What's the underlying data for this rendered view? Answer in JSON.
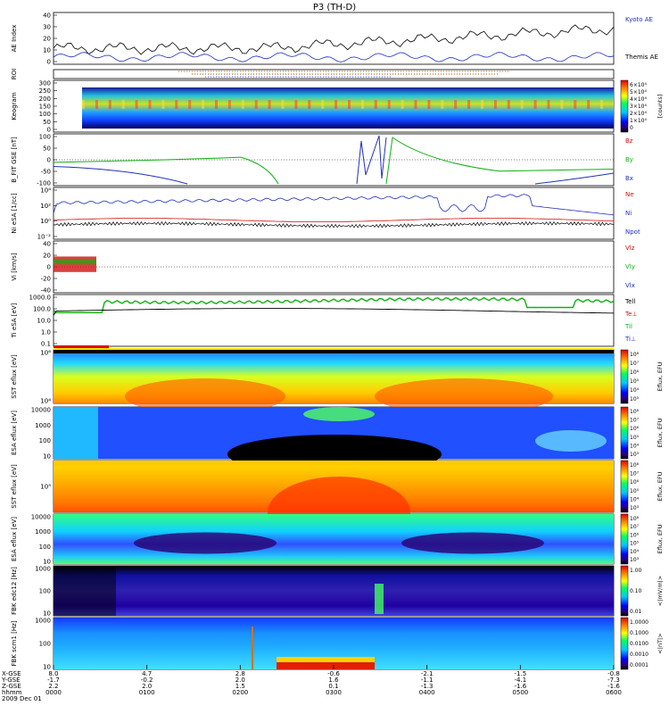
{
  "chart_data": {
    "type": "heatmap",
    "title": "P3 (TH-D)",
    "date_label": "2009 Dec 01",
    "time_ticks": [
      "0000",
      "0100",
      "0200",
      "0300",
      "0400",
      "0500",
      "0600"
    ],
    "ephemeris": {
      "labels": [
        "X-GSE",
        "Y-GSE",
        "Z-GSE",
        "hhmm"
      ],
      "x_gse": [
        "8.0",
        "4.7",
        "2.8",
        "-0.6",
        "-2.1",
        "-1.5",
        "-0.8"
      ],
      "y_gse": [
        "-1.7",
        "-0.2",
        "2.0",
        "1.6",
        "-1.1",
        "-4.1",
        "-7.3"
      ],
      "z_gse": [
        "2.2",
        "2.0",
        "1.5",
        "0.1",
        "-1.3",
        "-1.6",
        "-1.6"
      ]
    },
    "panels": [
      {
        "ylabel": "AE Index",
        "ticks": [
          "40",
          "30",
          "20",
          "10",
          "0"
        ],
        "legend": [
          {
            "name": "Kyoto AE",
            "color": "#1f2fbf"
          },
          {
            "name": "Themis AE",
            "color": "#000000"
          }
        ]
      },
      {
        "ylabel": "ROI",
        "ticks": [],
        "legend": []
      },
      {
        "ylabel": "Keogram",
        "ticks": [
          "300",
          "250",
          "200",
          "150",
          "100",
          "50",
          "0"
        ],
        "legend": [],
        "colorbar": {
          "ticks": [
            "6×10⁴",
            "5×10⁴",
            "4×10⁴",
            "3×10⁴",
            "2×10⁴",
            "1×10⁴",
            "0"
          ],
          "unit": "[counts]"
        }
      },
      {
        "ylabel": "B_FIT GSE [nT]",
        "ticks": [
          "100",
          "50",
          "0",
          "-50",
          "-100"
        ],
        "legend": [
          {
            "name": "Bz",
            "color": "#d01010"
          },
          {
            "name": "By",
            "color": "#10b010"
          },
          {
            "name": "Bx",
            "color": "#1f2fbf"
          }
        ]
      },
      {
        "ylabel": "Ni eSA [1/cc]",
        "ticks": [
          "10⁴",
          "10²",
          "10⁰",
          "10⁻²"
        ],
        "legend": [
          {
            "name": "Ne",
            "color": "#d01010"
          },
          {
            "name": "Ni",
            "color": "#1f2fbf"
          },
          {
            "name": "Npot",
            "color": "#1f2fbf"
          }
        ]
      },
      {
        "ylabel": "Vi [km/s]",
        "ticks": [
          "40",
          "20",
          "0",
          "-20",
          "-40"
        ],
        "legend": [
          {
            "name": "Vlz",
            "color": "#d01010"
          },
          {
            "name": "Vly",
            "color": "#10b010"
          },
          {
            "name": "Vlx",
            "color": "#1f2fbf"
          }
        ]
      },
      {
        "ylabel": "Ti eSA [eV]",
        "ticks": [
          "1000.0",
          "100.0",
          "10.0",
          "1.0",
          "0.1"
        ],
        "legend": [
          {
            "name": "Tell",
            "color": "#000000"
          },
          {
            "name": "Te⊥",
            "color": "#d01010"
          },
          {
            "name": "Til",
            "color": "#10b010"
          },
          {
            "name": "Ti⊥",
            "color": "#1f2fbf"
          }
        ]
      },
      {
        "ylabel": "SST eflux [eV]",
        "ticks": [
          "10⁶",
          "10⁴"
        ],
        "legend": [],
        "colorbar": {
          "ticks": [
            "10⁸",
            "10⁷",
            "10⁶",
            "10⁵",
            "10⁴",
            "10³"
          ],
          "unit": "Eflux, EFU"
        }
      },
      {
        "ylabel": "ESA eflux [eV]",
        "ticks": [
          "10000",
          "1000",
          "100",
          "10"
        ],
        "legend": [],
        "colorbar": {
          "ticks": [
            "10⁸",
            "10⁷",
            "10⁶",
            "10⁵",
            "10⁴",
            "10³"
          ],
          "unit": "Eflux, EFU"
        }
      },
      {
        "ylabel": "SST eflux [eV]",
        "ticks": [
          "10⁵"
        ],
        "legend": [],
        "colorbar": {
          "ticks": [
            "10⁸",
            "10⁷",
            "10⁶",
            "10⁵",
            "10⁴",
            "10³"
          ],
          "unit": "Eflux, EFU"
        }
      },
      {
        "ylabel": "ESA eflux [eV]",
        "ticks": [
          "10000",
          "1000",
          "100",
          "10"
        ],
        "legend": [],
        "colorbar": {
          "ticks": [
            "10⁸",
            "10⁷",
            "10⁶",
            "10⁵",
            "10⁴",
            "10³"
          ],
          "unit": "Eflux, EFU"
        }
      },
      {
        "ylabel": "FBK edc12 [Hz]",
        "ticks": [
          "1000",
          "100",
          "10"
        ],
        "legend": [],
        "colorbar": {
          "ticks": [
            "1.00",
            "0.10",
            "0.01"
          ],
          "unit": "<|mV/m|>"
        }
      },
      {
        "ylabel": "FBK scm1 [Hz]",
        "ticks": [
          "1000",
          "100",
          "10"
        ],
        "legend": [],
        "colorbar": {
          "ticks": [
            "1.0000",
            "0.1000",
            "0.0100",
            "0.0010",
            "0.0001"
          ],
          "unit": "<|nT|>"
        }
      }
    ]
  }
}
